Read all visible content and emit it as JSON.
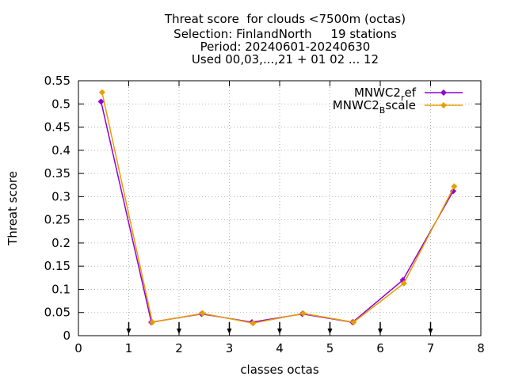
{
  "chart_data": {
    "type": "line",
    "title_lines": [
      "Threat score  for clouds <7500m (octas)",
      "Selection: FinlandNorth     19 stations",
      "Period: 20240601-20240630",
      "Used 00,03,...,21 + 01 02 ... 12"
    ],
    "xlabel": "classes octas",
    "ylabel": "Threat score",
    "xlim": [
      0,
      8
    ],
    "ylim": [
      0,
      0.55
    ],
    "x_ticks": [
      "0",
      "1",
      "2",
      "3",
      "4",
      "5",
      "6",
      "7",
      "8"
    ],
    "y_ticks": [
      "0",
      "0.05",
      "0.1",
      "0.15",
      "0.2",
      "0.25",
      "0.3",
      "0.35",
      "0.4",
      "0.45",
      "0.5",
      "0.55"
    ],
    "x_tick_values": [
      0,
      1,
      2,
      3,
      4,
      5,
      6,
      7,
      8
    ],
    "y_tick_values": [
      0,
      0.05,
      0.1,
      0.15,
      0.2,
      0.25,
      0.3,
      0.35,
      0.4,
      0.45,
      0.5,
      0.55
    ],
    "arrow_markers_x": [
      1,
      2,
      3,
      4,
      5,
      6,
      7
    ],
    "legend_position": "top-right",
    "series": [
      {
        "name_base": "MNWC2",
        "name_sub": "r",
        "name_tail": "ef",
        "color": "#9400d3",
        "x": [
          0.45,
          1.45,
          2.45,
          3.45,
          4.45,
          5.45,
          6.45,
          7.45
        ],
        "values": [
          0.505,
          0.029,
          0.047,
          0.029,
          0.047,
          0.029,
          0.12,
          0.312
        ]
      },
      {
        "name_base": "MNWC2",
        "name_sub": "B",
        "name_tail": "scale",
        "color": "#e69f00",
        "x": [
          0.47,
          1.47,
          2.47,
          3.47,
          4.47,
          5.47,
          6.47,
          7.47
        ],
        "values": [
          0.525,
          0.029,
          0.048,
          0.027,
          0.048,
          0.029,
          0.113,
          0.322
        ]
      }
    ]
  }
}
